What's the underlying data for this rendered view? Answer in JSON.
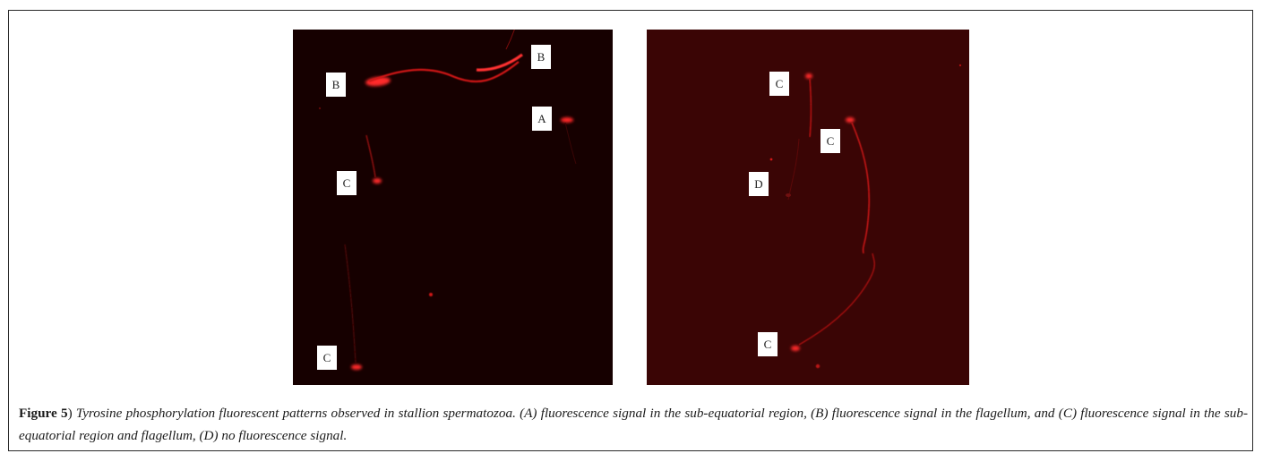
{
  "figure": {
    "panels": {
      "left": {
        "labels": [
          "B",
          "B",
          "A",
          "C",
          "C"
        ]
      },
      "right": {
        "labels": [
          "C",
          "C",
          "D",
          "C"
        ]
      }
    },
    "caption": {
      "label": "Figure 5",
      "label_close": ")",
      "text": "Tyrosine phosphorylation fluorescent patterns observed in stallion spermatozoa. (A) fluorescence signal in the sub-equatorial region, (B) fluorescence signal in the flagellum, and (C) fluorescence signal in the sub-equatorial region and flagellum, (D) no fluorescence signal."
    }
  }
}
